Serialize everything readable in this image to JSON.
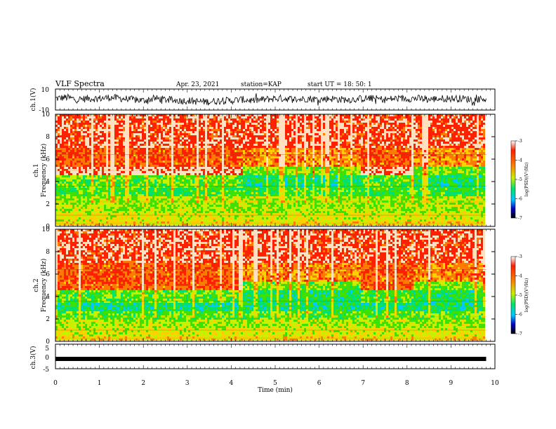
{
  "header": {
    "title": "VLF Spectra",
    "date": "Apr. 23, 2021",
    "station": "station=KAP",
    "start": "start UT =  18: 50: 1"
  },
  "chart_data": [
    {
      "type": "line",
      "panel": "ch1-waveform",
      "ylabel": "ch.1(V)",
      "ylim": [
        -10,
        10
      ],
      "yticks": [
        "10",
        "-10"
      ],
      "xlim": [
        0,
        10
      ],
      "series": [
        {
          "color": "#000000",
          "x": [
            0.0,
            0.25,
            0.5,
            0.75,
            1.0,
            1.25,
            1.5,
            1.75,
            2.0,
            2.25,
            2.5,
            2.75,
            3.0,
            3.25,
            3.5,
            3.75,
            4.0,
            4.25,
            4.5,
            4.75,
            5.0,
            5.25,
            5.5,
            5.75,
            6.0,
            6.25,
            6.5,
            6.75,
            7.0,
            7.25,
            7.5,
            7.75,
            8.0,
            8.25,
            8.5,
            8.75,
            9.0,
            9.25,
            9.5,
            9.75,
            9.8
          ],
          "y": [
            1,
            2,
            0,
            1,
            1,
            2,
            1,
            0,
            -1,
            1,
            0,
            -1,
            -1,
            -2,
            -2,
            -1,
            -1,
            0,
            -1,
            0,
            1,
            1,
            0,
            1,
            0,
            1,
            0,
            0,
            1,
            1,
            0,
            1,
            1,
            1,
            0,
            1,
            1,
            1,
            0,
            1,
            0
          ]
        }
      ]
    },
    {
      "type": "heatmap",
      "panel": "ch1-spectrogram",
      "ylabel": "ch.1 Frequency (kHz)",
      "ylim": [
        0,
        10
      ],
      "yticks": [
        "0",
        "2",
        "4",
        "6",
        "8",
        "10"
      ],
      "xlim": [
        0,
        10
      ],
      "colorbar": {
        "label": "log(PSD)(V²/Hz)",
        "range": [
          -7,
          -3
        ],
        "ticks": [
          "-3",
          "-4",
          "-5",
          "-6",
          "-7"
        ]
      }
    },
    {
      "type": "heatmap",
      "panel": "ch2-spectrogram",
      "ylabel": "ch.2 Frequency (kHz)",
      "ylim": [
        0,
        10
      ],
      "yticks": [
        "0",
        "2",
        "4",
        "6",
        "8",
        "10"
      ],
      "xlim": [
        0,
        10
      ],
      "colorbar": {
        "label": "log(PSD)(V²/Hz)",
        "range": [
          -7,
          -3
        ],
        "ticks": [
          "-3",
          "-4",
          "-5",
          "-6",
          "-7"
        ]
      }
    },
    {
      "type": "line",
      "panel": "ch3-waveform",
      "ylabel": "ch.3(V)",
      "ylim": [
        -5,
        5
      ],
      "yticks": [
        "5",
        "0",
        "-5"
      ],
      "xlim": [
        0,
        10
      ],
      "series": [
        {
          "color": "#000000",
          "x": [
            0,
            9.8
          ],
          "y": [
            -1,
            -1
          ]
        }
      ]
    }
  ],
  "xaxis": {
    "label": "Time (min)",
    "ticks": [
      "0",
      "1",
      "2",
      "3",
      "4",
      "5",
      "6",
      "7",
      "8",
      "9",
      "10"
    ]
  },
  "colors": {
    "palette": [
      "#000000",
      "#0000c8",
      "#0070ff",
      "#00c8ff",
      "#00e070",
      "#40e000",
      "#c8f000",
      "#ffd000",
      "#ff7a00",
      "#ff2000",
      "#ffffff"
    ]
  }
}
